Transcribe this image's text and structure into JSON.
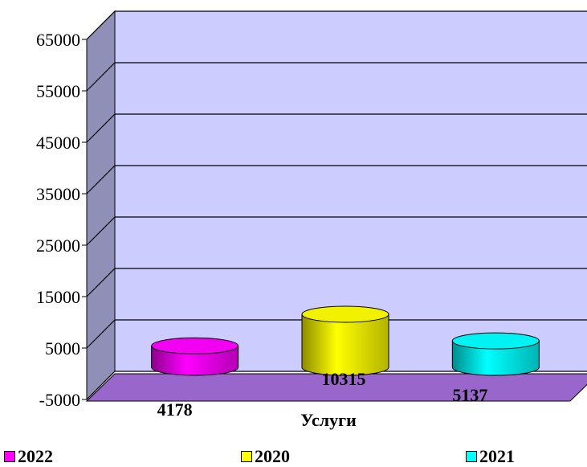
{
  "chart_data": {
    "type": "bar",
    "style": "3d-cylinder",
    "categories": [
      "Услуги"
    ],
    "series": [
      {
        "name": "2022",
        "values": [
          4178
        ],
        "color": "#ff00ff"
      },
      {
        "name": "2020",
        "values": [
          10315
        ],
        "color": "#ffff00"
      },
      {
        "name": "2021",
        "values": [
          5137
        ],
        "color": "#00ffff"
      }
    ],
    "y_ticks": [
      "-5000",
      "5000",
      "15000",
      "25000",
      "35000",
      "45000",
      "55000",
      "65000"
    ],
    "ylim": [
      -5000,
      65000
    ],
    "xlabel": "Услуги",
    "grid": true,
    "legend_position": "bottom",
    "wall_color": "#ccccff",
    "floor_color": "#9966cc"
  }
}
